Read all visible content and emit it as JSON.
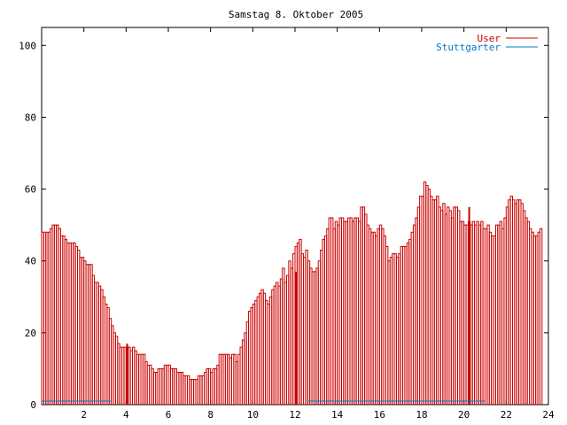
{
  "chart_data": {
    "type": "bar",
    "title": "Samstag 8. Oktober 2005",
    "xlabel": "",
    "ylabel": "",
    "xlim": [
      0,
      24
    ],
    "ylim": [
      0,
      105
    ],
    "x_ticks": [
      "2",
      "4",
      "6",
      "8",
      "10",
      "12",
      "14",
      "16",
      "18",
      "20",
      "22",
      "24"
    ],
    "y_ticks": [
      "0",
      "20",
      "40",
      "60",
      "80",
      "100"
    ],
    "grid": false,
    "legend_position": "top-right",
    "colors": {
      "User": "#cc0000",
      "Stuttgarter": "#0077cc"
    },
    "series": [
      {
        "name": "User",
        "bin_hours": 0.1,
        "values": [
          48,
          48,
          48,
          48,
          49,
          50,
          50,
          50,
          49,
          47,
          47,
          46,
          45,
          45,
          45,
          45,
          44,
          43,
          41,
          41,
          40,
          39,
          39,
          39,
          36,
          34,
          34,
          33,
          32,
          30,
          28,
          27,
          24,
          22,
          20,
          19,
          17,
          16,
          16,
          16,
          16,
          16,
          15,
          16,
          15,
          14,
          14,
          14,
          14,
          12,
          11,
          11,
          10,
          9,
          9,
          10,
          10,
          10,
          11,
          11,
          11,
          10,
          10,
          10,
          9,
          9,
          9,
          8,
          8,
          8,
          7,
          7,
          7,
          7,
          8,
          8,
          8,
          9,
          10,
          10,
          9,
          10,
          10,
          11,
          14,
          14,
          14,
          14,
          14,
          13,
          14,
          14,
          12,
          14,
          16,
          18,
          20,
          23,
          26,
          27,
          28,
          29,
          30,
          31,
          32,
          31,
          29,
          28,
          30,
          32,
          33,
          34,
          33,
          35,
          38,
          34,
          36,
          40,
          38,
          42,
          44,
          45,
          46,
          42,
          41,
          43,
          40,
          38,
          37,
          37,
          38,
          40,
          43,
          46,
          47,
          49,
          52,
          52,
          49,
          51,
          50,
          52,
          52,
          51,
          51,
          52,
          52,
          51,
          52,
          52,
          51,
          55,
          55,
          53,
          50,
          49,
          48,
          48,
          47,
          49,
          50,
          49,
          47,
          44,
          40,
          41,
          42,
          42,
          41,
          42,
          44,
          44,
          44,
          45,
          46,
          48,
          50,
          52,
          55,
          58,
          58,
          62,
          61,
          60,
          58,
          57,
          57,
          58,
          55,
          54,
          56,
          53,
          55,
          54,
          52,
          55,
          55,
          54,
          51,
          51,
          50,
          50,
          51,
          50,
          51,
          50,
          51,
          50,
          51,
          49,
          49,
          50,
          48,
          47,
          47,
          50,
          50,
          51,
          49,
          52,
          55,
          57,
          58,
          57,
          56,
          57,
          57,
          56,
          54,
          52,
          51,
          49,
          48,
          47,
          47,
          48,
          49
        ],
        "solid_spikes": [
          {
            "x": 4.05,
            "value": 17
          },
          {
            "x": 12.05,
            "value": 37
          },
          {
            "x": 20.25,
            "value": 55
          }
        ]
      },
      {
        "name": "Stuttgarter",
        "segments": [
          {
            "from": 0.0,
            "to": 3.3,
            "value": 1
          },
          {
            "from": 12.6,
            "to": 21.0,
            "value": 1
          }
        ]
      }
    ]
  }
}
